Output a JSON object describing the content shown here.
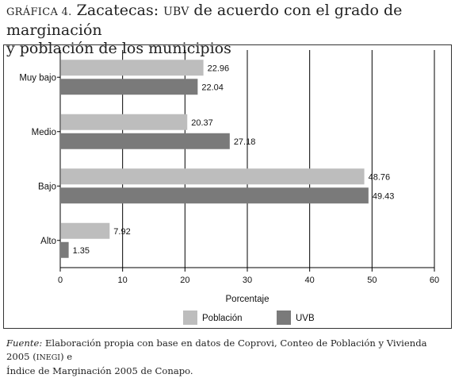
{
  "header": {
    "prefix": "GRÁFICA 4.",
    "title_a": " Zacatecas: ",
    "title_acr": "UBV",
    "title_b": " de acuerdo con el grado de marginación",
    "title_line2": "y población de los municipios"
  },
  "footer": {
    "label": "Fuente:",
    "text_a": " Elaboración propia con base en datos de Coprovi, Conteo de Población y Vivienda 2005 (",
    "acr": "INEGI",
    "text_b": ") e",
    "text_line2": "Índice de Marginación 2005 de Conapo."
  },
  "chart_data": {
    "type": "bar",
    "orientation": "horizontal",
    "categories": [
      "Muy bajo",
      "Medio",
      "Bajo",
      "Alto"
    ],
    "series": [
      {
        "name": "Población",
        "color": "#bdbdbd",
        "values": [
          22.96,
          20.37,
          48.76,
          7.92
        ]
      },
      {
        "name": "UVB",
        "color": "#7a7a7a",
        "values": [
          22.04,
          27.18,
          49.43,
          1.35
        ]
      }
    ],
    "value_labels": [
      [
        "22.96",
        "20.37",
        "48.76",
        "7.92"
      ],
      [
        "22.04",
        "27.18",
        "49.43",
        "1.35"
      ]
    ],
    "xlabel": "Porcentaje",
    "xlim": [
      0,
      60
    ],
    "xticks": [
      "0",
      "10",
      "20",
      "30",
      "40",
      "50",
      "60"
    ],
    "grid": true,
    "legend_position": "bottom"
  }
}
